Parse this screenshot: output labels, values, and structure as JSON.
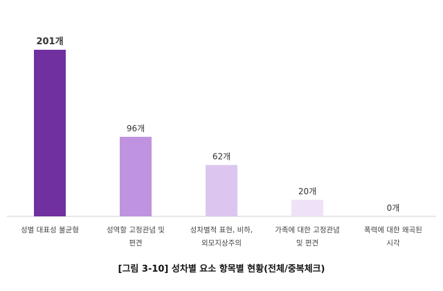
{
  "caption": "[그림 3-10] 성차별 요소 항목별 현황(전체/중복체크)",
  "chart_data": {
    "type": "bar",
    "categories": [
      [
        "성별 대표성 불균형"
      ],
      [
        "성역할 고정관념 및",
        "편견"
      ],
      [
        "성차별적 표현, 비하,",
        "외모지상주의"
      ],
      [
        "가족에 대한 고정관념",
        "및 편견"
      ],
      [
        "폭력에 대한 왜곡된",
        "시각"
      ]
    ],
    "values": [
      201,
      96,
      62,
      20,
      0
    ],
    "value_labels": [
      "201개",
      "96개",
      "62개",
      "20개",
      "0개"
    ],
    "colors": [
      "#7030a0",
      "#c093e0",
      "#dcc6f0",
      "#ede2f8",
      "#f5eefb"
    ],
    "ylim": [
      0,
      201
    ],
    "grid": false,
    "legend": "none"
  }
}
